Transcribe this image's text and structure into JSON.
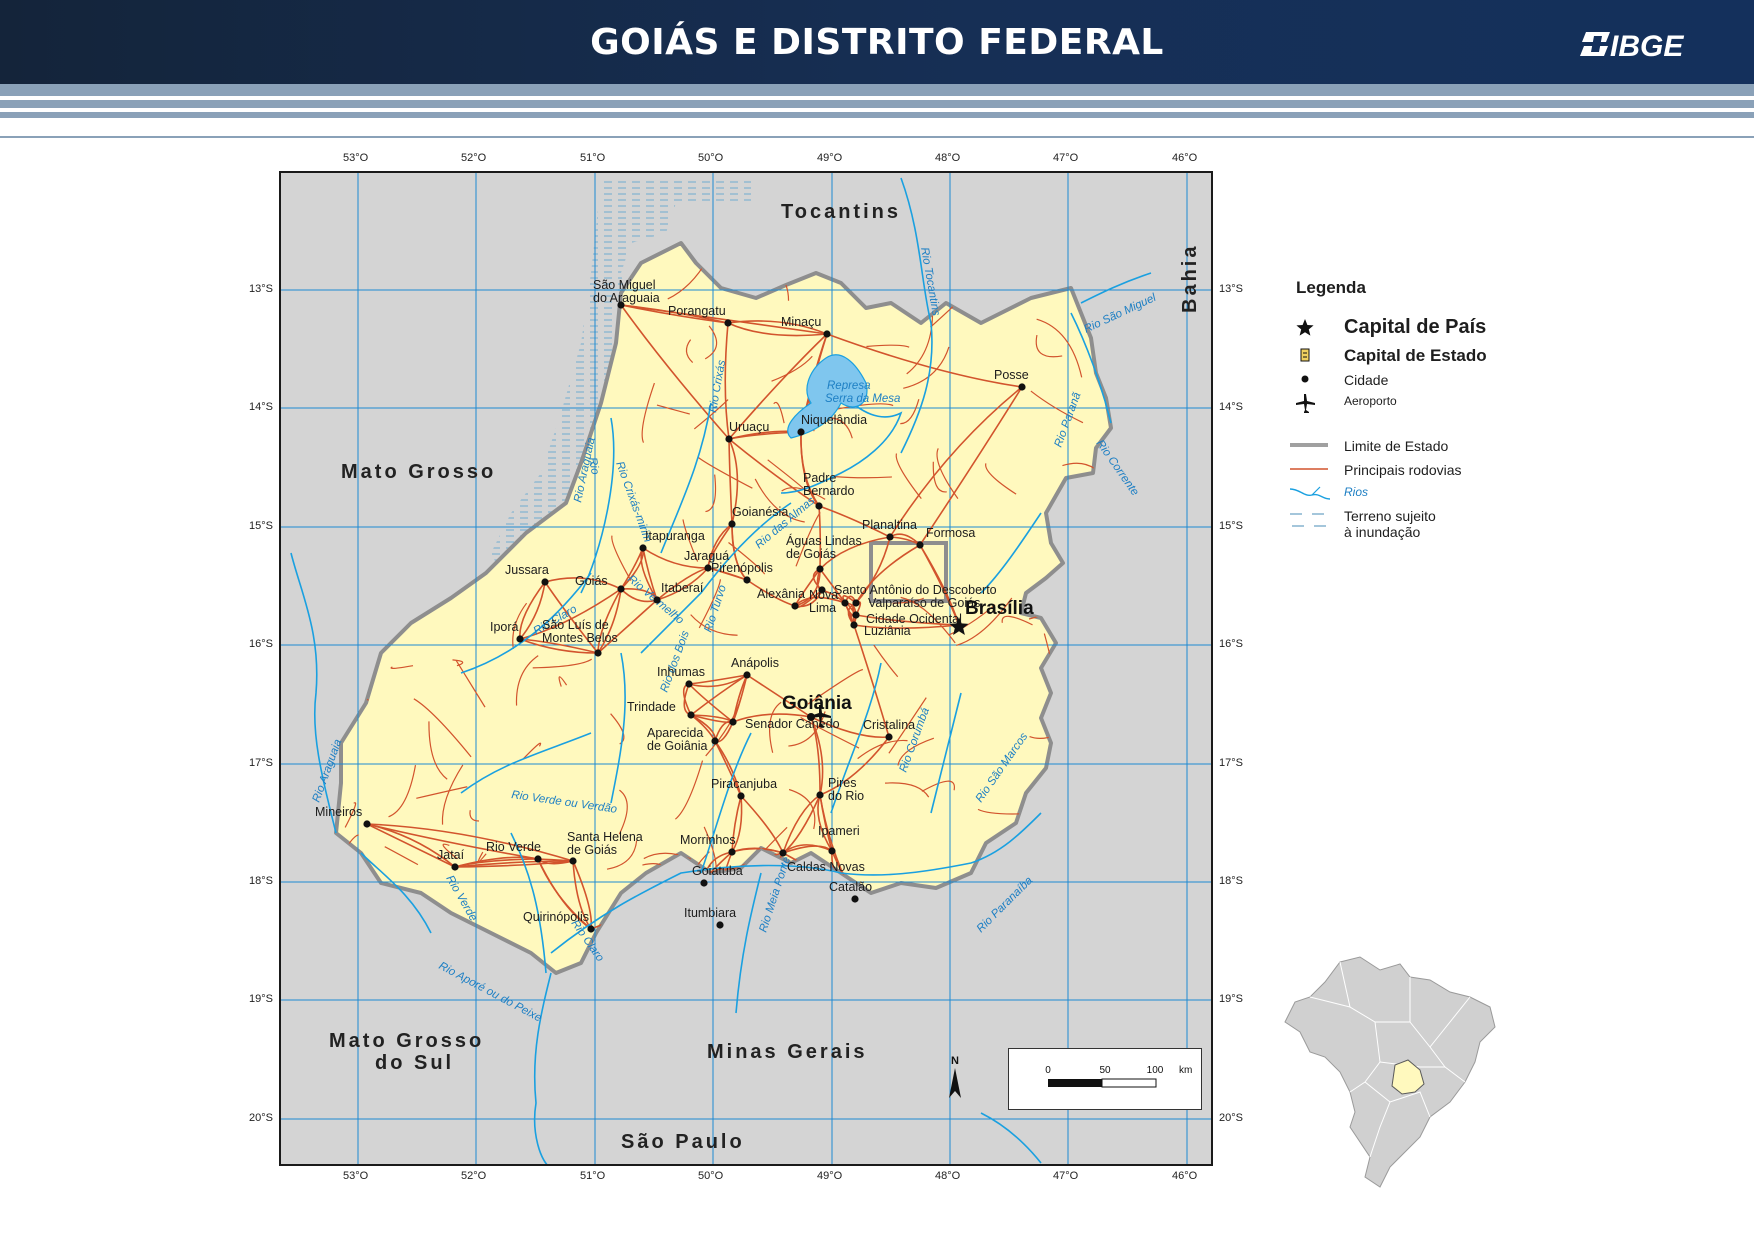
{
  "header": {
    "title": "GOIÁS E DISTRITO FEDERAL",
    "logo_text": "IBGE",
    "bg_color": "#152a49"
  },
  "map": {
    "longitude_labels": [
      "53°O",
      "52°O",
      "51°O",
      "50°O",
      "49°O",
      "48°O",
      "47°O",
      "46°O"
    ],
    "latitude_labels": [
      "13°S",
      "14°S",
      "15°S",
      "16°S",
      "17°S",
      "18°S",
      "19°S",
      "20°S"
    ],
    "neighbor_states": {
      "tocantins": "Tocantins",
      "bahia": "Bahia",
      "mato_grosso": "Mato Grosso",
      "mato_grosso_do_sul_1": "Mato Grosso",
      "mato_grosso_do_sul_2": "do Sul",
      "minas_gerais": "Minas Gerais",
      "sao_paulo": "São Paulo"
    },
    "capitals": {
      "brasilia": "Brasília",
      "goiania": "Goiânia"
    },
    "cities": [
      [
        "São Miguel",
        "do Araguaia"
      ],
      [
        "Porangatu"
      ],
      [
        "Minaçu"
      ],
      [
        "Posse"
      ],
      [
        "Uruaçu"
      ],
      [
        "Niquelândia"
      ],
      [
        "Padre",
        "Bernardo"
      ],
      [
        "Goianésia"
      ],
      [
        "Planaltina"
      ],
      [
        "Formosa"
      ],
      [
        "Itapuranga"
      ],
      [
        "Jaraguá"
      ],
      [
        "Águas Lindas",
        "de Goiás"
      ],
      [
        "Jussara"
      ],
      [
        "Pirenópolis"
      ],
      [
        "Santo Antônio do Descoberto"
      ],
      [
        "Goiás"
      ],
      [
        "Itaberaí"
      ],
      [
        "Alexânia"
      ],
      [
        "Nova",
        "Lima"
      ],
      [
        "Valparaíso de Goiás"
      ],
      [
        "Cidade Ocidental"
      ],
      [
        "Luziânia"
      ],
      [
        "Iporá"
      ],
      [
        "São Luís de",
        "Montes Belos"
      ],
      [
        "Inhumas"
      ],
      [
        "Anápolis"
      ],
      [
        "Trindade"
      ],
      [
        "Senador Canedo"
      ],
      [
        "Cristalina"
      ],
      [
        "Aparecida",
        "de Goiânia"
      ],
      [
        "Piracanjuba"
      ],
      [
        "Pires",
        "do Rio"
      ],
      [
        "Mineiros"
      ],
      [
        "Rio Verde"
      ],
      [
        "Santa Helena",
        "de Goiás"
      ],
      [
        "Jataí"
      ],
      [
        "Morrinhos"
      ],
      [
        "Ipameri"
      ],
      [
        "Caldas Novas"
      ],
      [
        "Goiatuba"
      ],
      [
        "Catalão"
      ],
      [
        "Quirinópolis"
      ],
      [
        "Itumbiara"
      ]
    ],
    "rivers": [
      "Rio São Miguel",
      "Rio Paranã",
      "Rio Corrente",
      "Rio Tocantins",
      "Represa",
      "Serra da Mesa",
      "Rio Araguaia",
      "Rio Crixás-mirim",
      "Rio Crixás",
      "Rio das Almas",
      "Rio Vermelho",
      "Rio Claro",
      "Rio Araguaia",
      "Rio Verde ou Verdão",
      "Rio Verde",
      "Rio Claro",
      "Rio Aporé ou do Peixe",
      "Rio dos Bois",
      "Rio Meia Ponte",
      "Rio Corumbá",
      "Rio São Marcos",
      "Rio Paranaíba",
      "Rio Turvo",
      "Rio"
    ],
    "north_arrow": "N",
    "scale": {
      "ticks": [
        "0",
        "50",
        "100"
      ],
      "unit": "km"
    },
    "colors": {
      "goias": "#fff9be",
      "neighbors": "#d4d4d4",
      "grid": "#1e8ad2",
      "roads": "#d2542d",
      "rivers": "#1aa0e0",
      "state_border": "#9a9a9a",
      "flood": "#9fc6dc"
    }
  },
  "legend": {
    "title": "Legenda",
    "items": [
      {
        "symbol": "star-icon",
        "label": "Capital de País"
      },
      {
        "symbol": "state-capital-icon",
        "label": "Capital de Estado"
      },
      {
        "symbol": "dot-icon",
        "label": "Cidade"
      },
      {
        "symbol": "airplane-icon",
        "label": "Aeroporto"
      },
      {
        "symbol": "gray-line",
        "label": "Limite de Estado"
      },
      {
        "symbol": "red-line",
        "label": "Principais rodovias"
      },
      {
        "symbol": "river-line",
        "label": "Rios"
      },
      {
        "symbol": "dashed-line",
        "label": "Terreno sujeito",
        "label2": "à inundação"
      }
    ]
  }
}
